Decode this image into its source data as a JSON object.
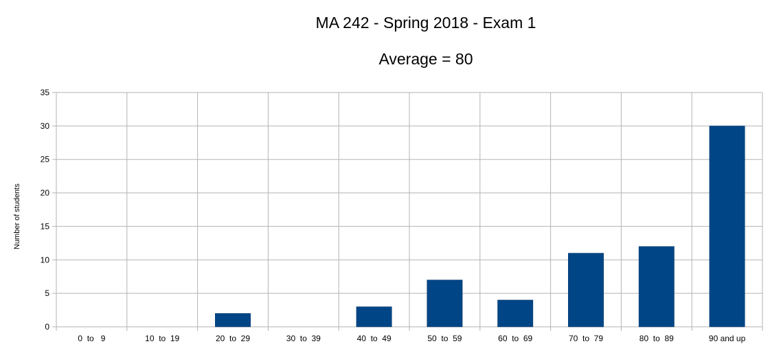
{
  "chart_data": {
    "type": "bar",
    "title": "MA 242 - Spring 2018 - Exam 1",
    "subtitle": "Average = 80",
    "xlabel": "",
    "ylabel": "Number of students",
    "categories": [
      "0  to   9",
      "10  to  19",
      "20  to  29",
      "30  to  39",
      "40  to  49",
      "50  to  59",
      "60  to  69",
      "70  to  79",
      "80  to  89",
      "90 and up"
    ],
    "values": [
      0,
      0,
      2,
      0,
      3,
      7,
      4,
      11,
      12,
      30
    ],
    "ylim": [
      0,
      35
    ],
    "yticks": [
      "0",
      "5",
      "10",
      "15",
      "20",
      "25",
      "30",
      "35"
    ],
    "grid": true,
    "legend": "none",
    "colors": {
      "bar": "#004586",
      "grid": "#b3b3b3",
      "axis": "#b3b3b3"
    }
  }
}
